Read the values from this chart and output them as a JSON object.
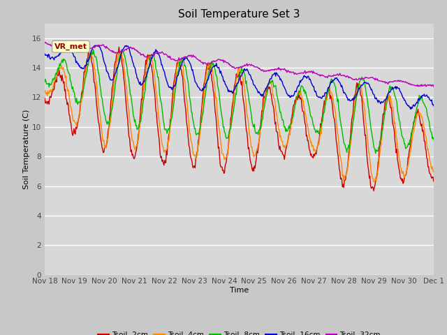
{
  "title": "Soil Temperature Set 3",
  "xlabel": "Time",
  "ylabel": "Soil Temperature (C)",
  "ylim": [
    0,
    17
  ],
  "yticks": [
    0,
    2,
    4,
    6,
    8,
    10,
    12,
    14,
    16
  ],
  "x_labels": [
    "Nov 18",
    "Nov 19",
    "Nov 20",
    "Nov 21",
    "Nov 22",
    "Nov 23",
    "Nov 24",
    "Nov 25",
    "Nov 26",
    "Nov 27",
    "Nov 28",
    "Nov 29",
    "Nov 30",
    "Dec 1"
  ],
  "colors": {
    "tsoil_2cm": "#cc0000",
    "tsoil_4cm": "#ff8800",
    "tsoil_8cm": "#00bb00",
    "tsoil_16cm": "#0000cc",
    "tsoil_32cm": "#bb00bb"
  },
  "legend_labels": [
    "Tsoil -2cm",
    "Tsoil -4cm",
    "Tsoil -8cm",
    "Tsoil -16cm",
    "Tsoil -32cm"
  ],
  "annotation_text": "VR_met",
  "fig_bg": "#d8d8d8",
  "ax_bg": "#e0e0e0",
  "title_fontsize": 11
}
